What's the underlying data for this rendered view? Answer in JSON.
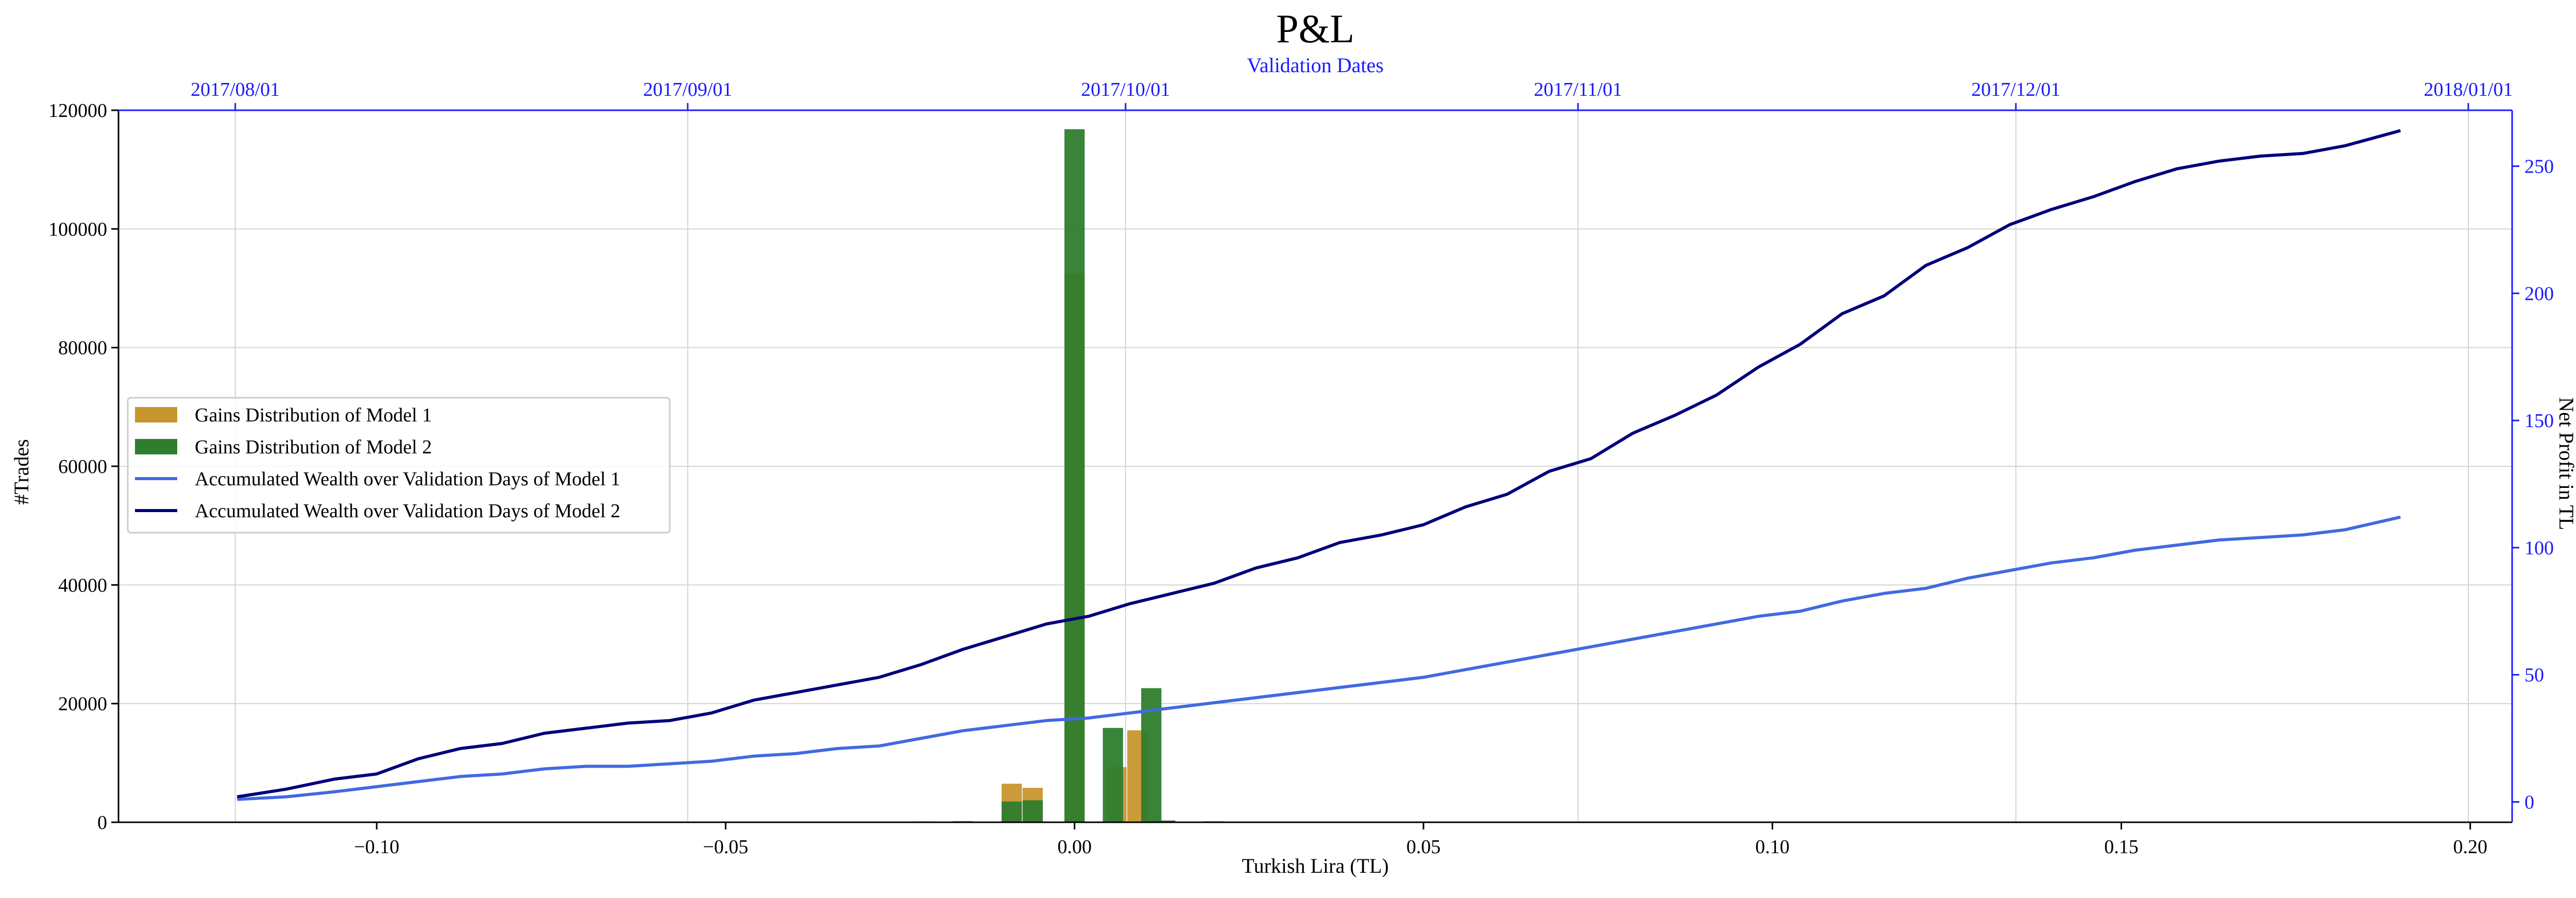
{
  "chart_data": {
    "type": "bar",
    "title": "P&L",
    "xlabel": "Turkish Lira (TL)",
    "ylabel": "#Trades",
    "y2label": "Net Profit in TL",
    "top_xlabel": "Validation Dates",
    "xlim": [
      -0.137,
      0.206
    ],
    "ylim": [
      0,
      120000
    ],
    "y2lim": [
      -8,
      272
    ],
    "grid": true,
    "legend_position": "center-left",
    "x_ticks": [
      -0.1,
      -0.05,
      0.0,
      0.05,
      0.1,
      0.15,
      0.2
    ],
    "x_tick_labels": [
      "−0.10",
      "−0.05",
      "0.00",
      "0.05",
      "0.10",
      "0.15",
      "0.20"
    ],
    "y_ticks": [
      0,
      20000,
      40000,
      60000,
      80000,
      100000,
      120000
    ],
    "y_tick_labels": [
      "0",
      "20000",
      "40000",
      "60000",
      "80000",
      "100000",
      "120000"
    ],
    "y2_ticks": [
      0,
      50,
      100,
      150,
      200,
      250
    ],
    "y2_tick_labels": [
      "0",
      "50",
      "100",
      "150",
      "200",
      "250"
    ],
    "top_ticks": [
      "2017-08-01",
      "2017-09-01",
      "2017-10-01",
      "2017-11-01",
      "2017-12-01",
      "2018-01-01"
    ],
    "top_tick_labels": [
      "2017/08/01",
      "2017/09/01",
      "2017/10/01",
      "2017/11/01",
      "2017/12/01",
      "2018/01/01"
    ],
    "top_xlim": [
      "2017-07-24",
      "2018-01-04"
    ],
    "bar_series": [
      {
        "name": "Gains Distribution of Model 1",
        "color": "#c8962e",
        "bin_width": 0.0029,
        "bins": [
          {
            "x": -0.0215,
            "value": 150
          },
          {
            "x": -0.016,
            "value": 200
          },
          {
            "x": -0.009,
            "value": 6500
          },
          {
            "x": -0.006,
            "value": 5800
          },
          {
            "x": 0.0,
            "value": 92500
          },
          {
            "x": 0.006,
            "value": 9300
          },
          {
            "x": 0.009,
            "value": 15500
          },
          {
            "x": 0.013,
            "value": 300
          },
          {
            "x": 0.02,
            "value": 150
          }
        ]
      },
      {
        "name": "Gains Distribution of Model 2",
        "color": "#2e7d2e",
        "bin_width": 0.0029,
        "bins": [
          {
            "x": -0.0215,
            "value": 100
          },
          {
            "x": -0.016,
            "value": 150
          },
          {
            "x": -0.009,
            "value": 3500
          },
          {
            "x": -0.006,
            "value": 3700
          },
          {
            "x": 0.0,
            "value": 116800
          },
          {
            "x": 0.0055,
            "value": 15900
          },
          {
            "x": 0.011,
            "value": 22600
          },
          {
            "x": 0.013,
            "value": 300
          },
          {
            "x": 0.02,
            "value": 150
          }
        ]
      }
    ],
    "line_series": [
      {
        "name": "Accumulated Wealth over Validation Days of Model 1",
        "color": "#4169e1",
        "axis": "y2",
        "x": [
          -0.12,
          -0.113,
          -0.106,
          -0.1,
          -0.094,
          -0.088,
          -0.082,
          -0.076,
          -0.07,
          -0.064,
          -0.058,
          -0.052,
          -0.046,
          -0.04,
          -0.034,
          -0.028,
          -0.022,
          -0.016,
          -0.01,
          -0.004,
          0.002,
          0.008,
          0.014,
          0.02,
          0.026,
          0.032,
          0.038,
          0.044,
          0.05,
          0.056,
          0.062,
          0.068,
          0.074,
          0.08,
          0.086,
          0.092,
          0.098,
          0.104,
          0.11,
          0.116,
          0.122,
          0.128,
          0.134,
          0.14,
          0.146,
          0.152,
          0.158,
          0.164,
          0.17,
          0.176,
          0.182,
          0.19
        ],
        "y": [
          1,
          2,
          4,
          6,
          8,
          10,
          11,
          13,
          14,
          14,
          15,
          16,
          18,
          19,
          21,
          22,
          25,
          28,
          30,
          32,
          33,
          35,
          37,
          39,
          41,
          43,
          45,
          47,
          49,
          52,
          55,
          58,
          61,
          64,
          67,
          70,
          73,
          75,
          79,
          82,
          84,
          88,
          91,
          94,
          96,
          99,
          101,
          103,
          104,
          105,
          107,
          112
        ]
      },
      {
        "name": "Accumulated Wealth over Validation Days of Model 2",
        "color": "#00007a",
        "axis": "y2",
        "x": [
          -0.12,
          -0.113,
          -0.106,
          -0.1,
          -0.094,
          -0.088,
          -0.082,
          -0.076,
          -0.07,
          -0.064,
          -0.058,
          -0.052,
          -0.046,
          -0.04,
          -0.034,
          -0.028,
          -0.022,
          -0.016,
          -0.01,
          -0.004,
          0.002,
          0.008,
          0.014,
          0.02,
          0.026,
          0.032,
          0.038,
          0.044,
          0.05,
          0.056,
          0.062,
          0.068,
          0.074,
          0.08,
          0.086,
          0.092,
          0.098,
          0.104,
          0.11,
          0.116,
          0.122,
          0.128,
          0.134,
          0.14,
          0.146,
          0.152,
          0.158,
          0.164,
          0.17,
          0.176,
          0.182,
          0.19
        ],
        "y": [
          2,
          5,
          9,
          11,
          17,
          21,
          23,
          27,
          29,
          31,
          32,
          35,
          40,
          43,
          46,
          49,
          54,
          60,
          65,
          70,
          73,
          78,
          82,
          86,
          92,
          96,
          102,
          105,
          109,
          116,
          121,
          130,
          135,
          145,
          152,
          160,
          171,
          180,
          192,
          199,
          211,
          218,
          227,
          233,
          238,
          244,
          249,
          252,
          254,
          255,
          258,
          264
        ]
      }
    ]
  }
}
